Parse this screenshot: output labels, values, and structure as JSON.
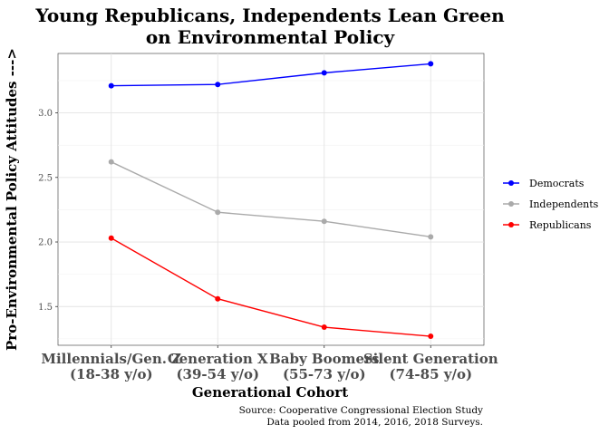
{
  "chart_data": {
    "type": "line",
    "title": [
      "Young Republicans, Independents Lean Green",
      "on Environmental Policy"
    ],
    "xlabel": "Generational Cohort",
    "ylabel": "Pro-Environmental Policy Attitudes --->",
    "categories": [
      [
        "Millennials/Gen. Z",
        "(18-38 y/o)"
      ],
      [
        "Generation X",
        "(39-54 y/o)"
      ],
      [
        "Baby Boomers",
        "(55-73 y/o)"
      ],
      [
        "Silent Generation",
        "(74-85 y/o)"
      ]
    ],
    "yticks": [
      1.5,
      2.0,
      2.5,
      3.0
    ],
    "ytick_labels": [
      "1.5",
      "2.0",
      "2.5",
      "3.0"
    ],
    "ylim": [
      1.2,
      3.46
    ],
    "grid": true,
    "legend_position": "right",
    "series": [
      {
        "name": "Democrats",
        "color": "#0000ff",
        "values": [
          3.21,
          3.22,
          3.31,
          3.38
        ]
      },
      {
        "name": "Independents",
        "color": "#aaaaaa",
        "values": [
          2.62,
          2.23,
          2.16,
          2.04
        ]
      },
      {
        "name": "Republicans",
        "color": "#ff0000",
        "values": [
          2.03,
          1.56,
          1.34,
          1.27
        ]
      }
    ],
    "caption": [
      "Source: Cooperative Congressional Election Study",
      "Data pooled  from 2014, 2016, 2018 Surveys."
    ]
  }
}
